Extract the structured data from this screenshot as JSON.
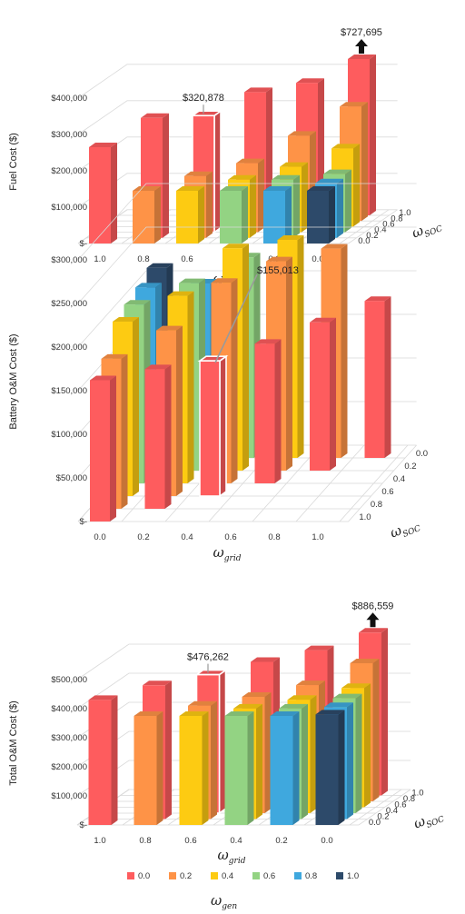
{
  "colors": {
    "palette": [
      "#fe5c5e",
      "#fe9347",
      "#fdcb12",
      "#93d383",
      "#3fa8de",
      "#2d4a6a"
    ]
  },
  "legend": {
    "entries": [
      "0.0",
      "0.2",
      "0.4",
      "0.6",
      "0.8",
      "1.0"
    ],
    "title": "ω",
    "title_sub": "gen"
  },
  "chart_data": [
    {
      "type": "bar",
      "variant": "3d-column",
      "ylabel": "Fuel Cost ($)",
      "xlabel": "ω",
      "xlabel_sub": "grid",
      "zlabel": "ω",
      "zlabel_sub": "SOC",
      "y_ticks": [
        "$-",
        "$100,000",
        "$200,000",
        "$300,000",
        "$400,000"
      ],
      "ylim": [
        0,
        400000
      ],
      "x_categories": [
        "1.0",
        "0.8",
        "0.6",
        "0.4",
        "0.2",
        "0.0"
      ],
      "z_categories": [
        "0.0",
        "0.2",
        "0.4",
        "0.6",
        "0.8",
        "1.0"
      ],
      "series_by_wgen": [
        {
          "name": "0.0",
          "values": [
            [
              265000,
              null,
              null,
              null,
              null,
              null
            ],
            [
              null,
              null,
              null,
              null,
              null,
              null
            ],
            [
              330000,
              null,
              null,
              null,
              null,
              null
            ],
            [
              null,
              null,
              null,
              null,
              null,
              null
            ],
            [
              320878,
              null,
              null,
              null,
              null,
              null
            ],
            [
              380000,
              null,
              null,
              null,
              null,
              null
            ]
          ]
        }
      ],
      "bars": [
        {
          "x": "1.0",
          "z": "0.0",
          "g": 0,
          "v": 265000
        },
        {
          "x": "0.8",
          "z": "0.2",
          "g": 0,
          "v": 330000
        },
        {
          "x": "0.8",
          "z": "0.0",
          "g": 1,
          "v": 145000
        },
        {
          "x": "0.6",
          "z": "0.4",
          "g": 0,
          "v": 320878,
          "highlight": true
        },
        {
          "x": "0.6",
          "z": "0.2",
          "g": 1,
          "v": 170000
        },
        {
          "x": "0.6",
          "z": "0.0",
          "g": 2,
          "v": 145000
        },
        {
          "x": "0.4",
          "z": "0.6",
          "g": 0,
          "v": 370000
        },
        {
          "x": "0.4",
          "z": "0.4",
          "g": 1,
          "v": 190000
        },
        {
          "x": "0.4",
          "z": "0.2",
          "g": 2,
          "v": 160000
        },
        {
          "x": "0.4",
          "z": "0.0",
          "g": 3,
          "v": 145000
        },
        {
          "x": "0.2",
          "z": "0.8",
          "g": 0,
          "v": 380000
        },
        {
          "x": "0.2",
          "z": "0.6",
          "g": 1,
          "v": 250000
        },
        {
          "x": "0.2",
          "z": "0.4",
          "g": 2,
          "v": 180000
        },
        {
          "x": "0.2",
          "z": "0.2",
          "g": 3,
          "v": 160000
        },
        {
          "x": "0.2",
          "z": "0.0",
          "g": 4,
          "v": 145000
        },
        {
          "x": "0.0",
          "z": "1.0",
          "g": 0,
          "v": 727695,
          "clip": 430000
        },
        {
          "x": "0.0",
          "z": "0.8",
          "g": 1,
          "v": 315000
        },
        {
          "x": "0.0",
          "z": "0.6",
          "g": 2,
          "v": 215000
        },
        {
          "x": "0.0",
          "z": "0.4",
          "g": 3,
          "v": 160000
        },
        {
          "x": "0.0",
          "z": "0.2",
          "g": 4,
          "v": 150000
        },
        {
          "x": "0.0",
          "z": "0.0",
          "g": 5,
          "v": 145000
        }
      ],
      "annotations": [
        {
          "text": "$320,878",
          "kind": "label"
        },
        {
          "text": "$727,695",
          "kind": "arrow"
        }
      ]
    },
    {
      "type": "bar",
      "variant": "3d-column",
      "ylabel": "Battery O&M Cost ($)",
      "xlabel": "ω",
      "xlabel_sub": "grid",
      "zlabel": "ω",
      "zlabel_sub": "SOC",
      "y_ticks": [
        "$-",
        "$50,000",
        "$100,000",
        "$150,000",
        "$200,000",
        "$250,000",
        "$300,000"
      ],
      "ylim": [
        0,
        300000
      ],
      "x_categories": [
        "0.0",
        "0.2",
        "0.4",
        "0.6",
        "0.8",
        "1.0"
      ],
      "z_categories": [
        "1.0",
        "0.8",
        "0.6",
        "0.4",
        "0.2",
        "0.0"
      ],
      "bars": [
        {
          "x": "0.0",
          "z": "1.0",
          "g": 0,
          "v": 162000
        },
        {
          "x": "0.0",
          "z": "0.8",
          "g": 1,
          "v": 172000
        },
        {
          "x": "0.0",
          "z": "0.6",
          "g": 2,
          "v": 200000
        },
        {
          "x": "0.0",
          "z": "0.4",
          "g": 3,
          "v": 205000
        },
        {
          "x": "0.0",
          "z": "0.2",
          "g": 4,
          "v": 210000
        },
        {
          "x": "0.0",
          "z": "0.0",
          "g": 5,
          "v": 218000
        },
        {
          "x": "0.2",
          "z": "0.8",
          "g": 0,
          "v": 160000
        },
        {
          "x": "0.2",
          "z": "0.6",
          "g": 1,
          "v": 190000
        },
        {
          "x": "0.2",
          "z": "0.4",
          "g": 2,
          "v": 215000
        },
        {
          "x": "0.2",
          "z": "0.2",
          "g": 3,
          "v": 215000
        },
        {
          "x": "0.2",
          "z": "0.0",
          "g": 4,
          "v": 200000
        },
        {
          "x": "0.4",
          "z": "0.6",
          "g": 0,
          "v": 155013,
          "highlight": true
        },
        {
          "x": "0.4",
          "z": "0.4",
          "g": 1,
          "v": 230000
        },
        {
          "x": "0.4",
          "z": "0.2",
          "g": 2,
          "v": 255000
        },
        {
          "x": "0.4",
          "z": "0.0",
          "g": 3,
          "v": 230000
        },
        {
          "x": "0.6",
          "z": "0.4",
          "g": 0,
          "v": 160000
        },
        {
          "x": "0.6",
          "z": "0.2",
          "g": 1,
          "v": 240000
        },
        {
          "x": "0.6",
          "z": "0.0",
          "g": 2,
          "v": 250000
        },
        {
          "x": "0.8",
          "z": "0.2",
          "g": 0,
          "v": 170000
        },
        {
          "x": "0.8",
          "z": "0.0",
          "g": 1,
          "v": 240000
        },
        {
          "x": "1.0",
          "z": "0.0",
          "g": 0,
          "v": 180000
        }
      ],
      "annotations": [
        {
          "text": "$155,013",
          "kind": "label"
        }
      ]
    },
    {
      "type": "bar",
      "variant": "3d-column",
      "ylabel": "Total O&M Cost ($)",
      "xlabel": "ω",
      "xlabel_sub": "grid",
      "zlabel": "ω",
      "zlabel_sub": "SOC",
      "y_ticks": [
        "$-",
        "$100,000",
        "$200,000",
        "$300,000",
        "$400,000",
        "$500,000"
      ],
      "ylim": [
        0,
        500000
      ],
      "x_categories": [
        "1.0",
        "0.8",
        "0.6",
        "0.4",
        "0.2",
        "0.0"
      ],
      "z_categories": [
        "0.0",
        "0.2",
        "0.4",
        "0.6",
        "0.8",
        "1.0"
      ],
      "bars": [
        {
          "x": "1.0",
          "z": "0.0",
          "g": 0,
          "v": 430000
        },
        {
          "x": "0.8",
          "z": "0.2",
          "g": 0,
          "v": 460000
        },
        {
          "x": "0.8",
          "z": "0.0",
          "g": 1,
          "v": 375000
        },
        {
          "x": "0.6",
          "z": "0.4",
          "g": 0,
          "v": 476262,
          "highlight": true
        },
        {
          "x": "0.6",
          "z": "0.2",
          "g": 1,
          "v": 390000
        },
        {
          "x": "0.6",
          "z": "0.0",
          "g": 2,
          "v": 375000
        },
        {
          "x": "0.4",
          "z": "0.6",
          "g": 0,
          "v": 500000
        },
        {
          "x": "0.4",
          "z": "0.4",
          "g": 1,
          "v": 400000
        },
        {
          "x": "0.4",
          "z": "0.2",
          "g": 2,
          "v": 380000
        },
        {
          "x": "0.4",
          "z": "0.0",
          "g": 3,
          "v": 375000
        },
        {
          "x": "0.2",
          "z": "0.8",
          "g": 0,
          "v": 520000
        },
        {
          "x": "0.2",
          "z": "0.6",
          "g": 1,
          "v": 420000
        },
        {
          "x": "0.2",
          "z": "0.4",
          "g": 2,
          "v": 390000
        },
        {
          "x": "0.2",
          "z": "0.2",
          "g": 3,
          "v": 380000
        },
        {
          "x": "0.2",
          "z": "0.0",
          "g": 4,
          "v": 375000
        },
        {
          "x": "0.0",
          "z": "1.0",
          "g": 0,
          "v": 886559,
          "clip": 560000
        },
        {
          "x": "0.0",
          "z": "0.8",
          "g": 1,
          "v": 475000
        },
        {
          "x": "0.0",
          "z": "0.6",
          "g": 2,
          "v": 410000
        },
        {
          "x": "0.0",
          "z": "0.4",
          "g": 3,
          "v": 395000
        },
        {
          "x": "0.0",
          "z": "0.2",
          "g": 4,
          "v": 385000
        },
        {
          "x": "0.0",
          "z": "0.0",
          "g": 5,
          "v": 380000
        }
      ],
      "annotations": [
        {
          "text": "$476,262",
          "kind": "label"
        },
        {
          "text": "$886,559",
          "kind": "arrow"
        }
      ]
    }
  ]
}
